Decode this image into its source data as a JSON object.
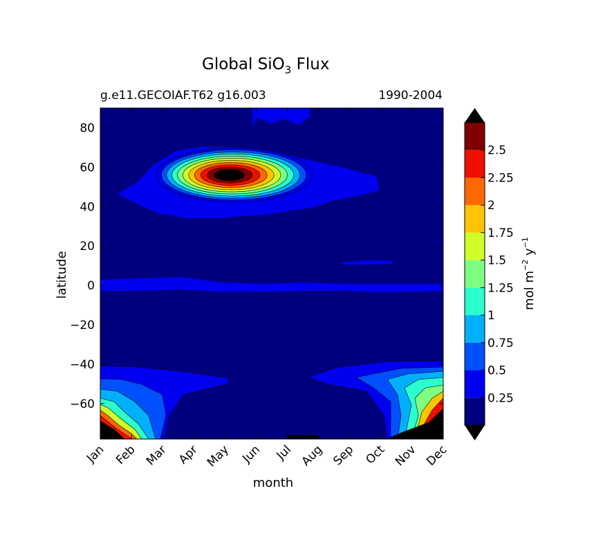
{
  "chart_data": {
    "type": "heatmap",
    "title": "Global SiO",
    "title_sub": "3",
    "title_tail": " Flux",
    "subtitle_left": "g.e11.GECOIAF.T62 g16.003",
    "subtitle_right": "1990-2004",
    "xlabel": "month",
    "ylabel": "latitude",
    "x_ticks": [
      "Jan",
      "Feb",
      "Mar",
      "Apr",
      "May",
      "Jun",
      "Jul",
      "Aug",
      "Sep",
      "Oct",
      "Nov",
      "Dec"
    ],
    "y_ticks": [
      80,
      60,
      40,
      20,
      0,
      -20,
      -40,
      -60
    ],
    "y_tick_labels": [
      "80",
      "60",
      "40",
      "20",
      "0",
      "−20",
      "−40",
      "−60"
    ],
    "ylim": [
      -78,
      90
    ],
    "colorbar": {
      "label_main": "mol m",
      "label_exp1": "−2",
      "label_mid": " y",
      "label_exp2": "−1",
      "levels": [
        0,
        0.25,
        0.5,
        0.75,
        1,
        1.25,
        1.5,
        1.75,
        2,
        2.25,
        2.5,
        2.75
      ],
      "tick_labels": [
        "0.25",
        "0.5",
        "0.75",
        "1",
        "1.25",
        "1.5",
        "1.75",
        "2",
        "2.25",
        "2.5"
      ],
      "colors": [
        "#00007f",
        "#0000f0",
        "#0050ff",
        "#00b0ff",
        "#2bffce",
        "#7fff7f",
        "#ceff29",
        "#ffc400",
        "#ff6800",
        "#f00f00",
        "#7f0000"
      ],
      "under_color": "#000000",
      "over_color": "#000000",
      "extend": "both"
    },
    "regions": [
      {
        "name": "north-pacific-bloom",
        "center_month": 4.3,
        "center_lat": 56,
        "peak": 3.0
      },
      {
        "name": "equatorial-band",
        "lat": 0,
        "value": 0.3
      },
      {
        "name": "arctic-summer",
        "months": [
          5,
          8
        ],
        "lat_min": 80,
        "value": 0.3
      },
      {
        "name": "southern-ocean",
        "months": [
          0,
          1,
          2,
          9,
          10,
          11
        ],
        "lat_range": [
          -78,
          -42
        ],
        "peak": 3.0
      }
    ]
  }
}
